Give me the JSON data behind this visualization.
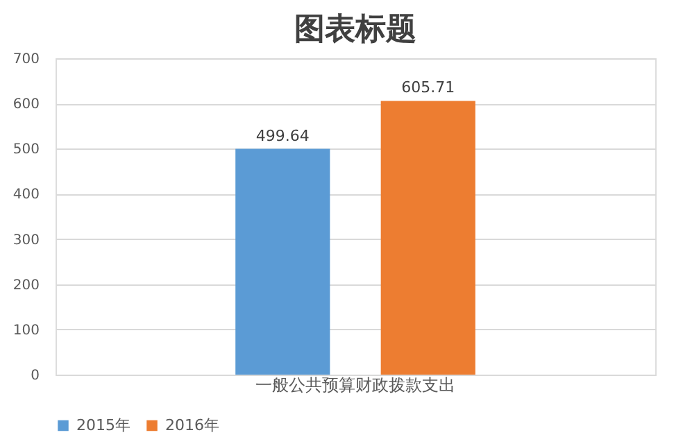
{
  "chart_data": {
    "type": "bar",
    "title": "图表标题",
    "categories": [
      "一般公共预算财政拨款支出"
    ],
    "series": [
      {
        "name": "2015年",
        "color": "#5b9bd5",
        "values": [
          499.64
        ]
      },
      {
        "name": "2016年",
        "color": "#ed7d31",
        "values": [
          605.71
        ]
      }
    ],
    "ylim": [
      0,
      700
    ],
    "yticks": [
      0,
      100,
      200,
      300,
      400,
      500,
      600,
      700
    ],
    "grid": "y",
    "legend": "bottom",
    "data_labels": true
  }
}
